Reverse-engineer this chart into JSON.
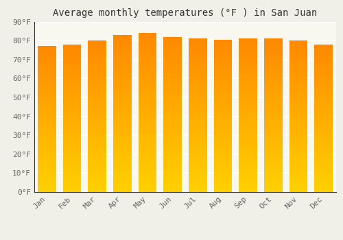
{
  "title": "Average monthly temperatures (°F ) in San Juan",
  "months": [
    "Jan",
    "Feb",
    "Mar",
    "Apr",
    "May",
    "Jun",
    "Jul",
    "Aug",
    "Sep",
    "Oct",
    "Nov",
    "Dec"
  ],
  "values": [
    77,
    78,
    80,
    83,
    84,
    82,
    81,
    80.5,
    81,
    81,
    80,
    78
  ],
  "ylim": [
    0,
    90
  ],
  "yticks": [
    0,
    10,
    20,
    30,
    40,
    50,
    60,
    70,
    80,
    90
  ],
  "bar_color_bottom": "#FFD000",
  "bar_color_top": "#FF8C00",
  "background_color": "#F0F0E8",
  "plot_bg_color": "#F8F8F0",
  "grid_color": "#FFFFFF",
  "title_fontsize": 10,
  "tick_fontsize": 8,
  "font_family": "monospace",
  "bar_width": 0.72,
  "spine_color": "#333333"
}
